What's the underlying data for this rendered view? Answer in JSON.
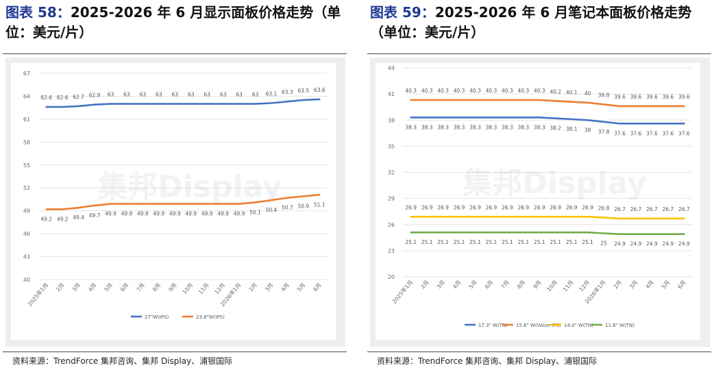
{
  "left": {
    "title_label": "图表",
    "title_num": "58：",
    "title_text": "2025-2026 年 6 月显示面板价格走势（单位：美元/片）",
    "source": "资料来源：TrendForce 集邦咨询、集邦 Display、浦银国际"
  },
  "right": {
    "title_label": "图表",
    "title_num": "59：",
    "title_text": "2025-2026 年 6 月笔记本面板价格走势（单位：美元/片）",
    "source": "资料来源：TrendForce 集邦咨询、集邦 Display、浦银国际"
  },
  "watermark": "集邦Display",
  "chart_data": [
    {
      "type": "line",
      "categories": [
        "2025年1月",
        "2月",
        "3月",
        "4月",
        "5月",
        "6月",
        "7月",
        "8月",
        "9月",
        "10月",
        "11月",
        "12月",
        "2026年1月",
        "2月",
        "3月",
        "4月",
        "5月",
        "6月"
      ],
      "yticks": [
        40,
        43,
        46,
        49,
        52,
        55,
        58,
        61,
        64,
        67
      ],
      "ylim": [
        40,
        67
      ],
      "grid": true,
      "legend_position": "bottom",
      "series": [
        {
          "name": "27\"W(IPS)",
          "color": "#4472c4",
          "label_pos": "above",
          "values": [
            62.6,
            62.6,
            62.7,
            62.9,
            63,
            63,
            63,
            63,
            63,
            63,
            63,
            63,
            63,
            63,
            63.1,
            63.3,
            63.5,
            63.6
          ]
        },
        {
          "name": "23.8\"W(IPS)",
          "color": "#ed7d31",
          "label_pos": "below",
          "values": [
            49.2,
            49.2,
            49.4,
            49.7,
            49.9,
            49.9,
            49.9,
            49.9,
            49.9,
            49.9,
            49.9,
            49.9,
            49.9,
            50.1,
            50.4,
            50.7,
            50.9,
            51.1
          ]
        }
      ]
    },
    {
      "type": "line",
      "categories": [
        "2025年1月",
        "2月",
        "3月",
        "4月",
        "5月",
        "6月",
        "7月",
        "8月",
        "9月",
        "10月",
        "11月",
        "12月",
        "2026年1月",
        "2月",
        "3月",
        "4月",
        "5月",
        "6月"
      ],
      "yticks": [
        20,
        23,
        26,
        29,
        32,
        35,
        38,
        41,
        44
      ],
      "ylim": [
        20,
        44
      ],
      "grid": true,
      "legend_position": "bottom",
      "series": [
        {
          "name": "17.3\" W(TN)",
          "color": "#4472c4",
          "label_pos": "below",
          "values": [
            38.3,
            38.3,
            38.3,
            38.3,
            38.3,
            38.3,
            38.3,
            38.3,
            38.3,
            38.2,
            38.1,
            38.0,
            37.8,
            37.6,
            37.6,
            37.6,
            37.6,
            37.6
          ]
        },
        {
          "name": "15.6\" W(Value IPS)",
          "color": "#ed7d31",
          "label_pos": "above",
          "values": [
            40.3,
            40.3,
            40.3,
            40.3,
            40.3,
            40.3,
            40.3,
            40.3,
            40.3,
            40.2,
            40.1,
            40.0,
            39.8,
            39.6,
            39.6,
            39.6,
            39.6,
            39.6
          ]
        },
        {
          "name": "14.0\" W(TN)",
          "color": "#ffc000",
          "label_pos": "above",
          "values": [
            26.9,
            26.9,
            26.9,
            26.9,
            26.9,
            26.9,
            26.9,
            26.9,
            26.9,
            26.9,
            26.9,
            26.9,
            26.8,
            26.7,
            26.7,
            26.7,
            26.7,
            26.7
          ]
        },
        {
          "name": "11.6\" W(TN)",
          "color": "#70ad47",
          "label_pos": "below",
          "values": [
            25.1,
            25.1,
            25.1,
            25.1,
            25.1,
            25.1,
            25.1,
            25.1,
            25.1,
            25.1,
            25.1,
            25.1,
            25,
            24.9,
            24.9,
            24.9,
            24.9,
            24.9
          ]
        }
      ]
    }
  ]
}
